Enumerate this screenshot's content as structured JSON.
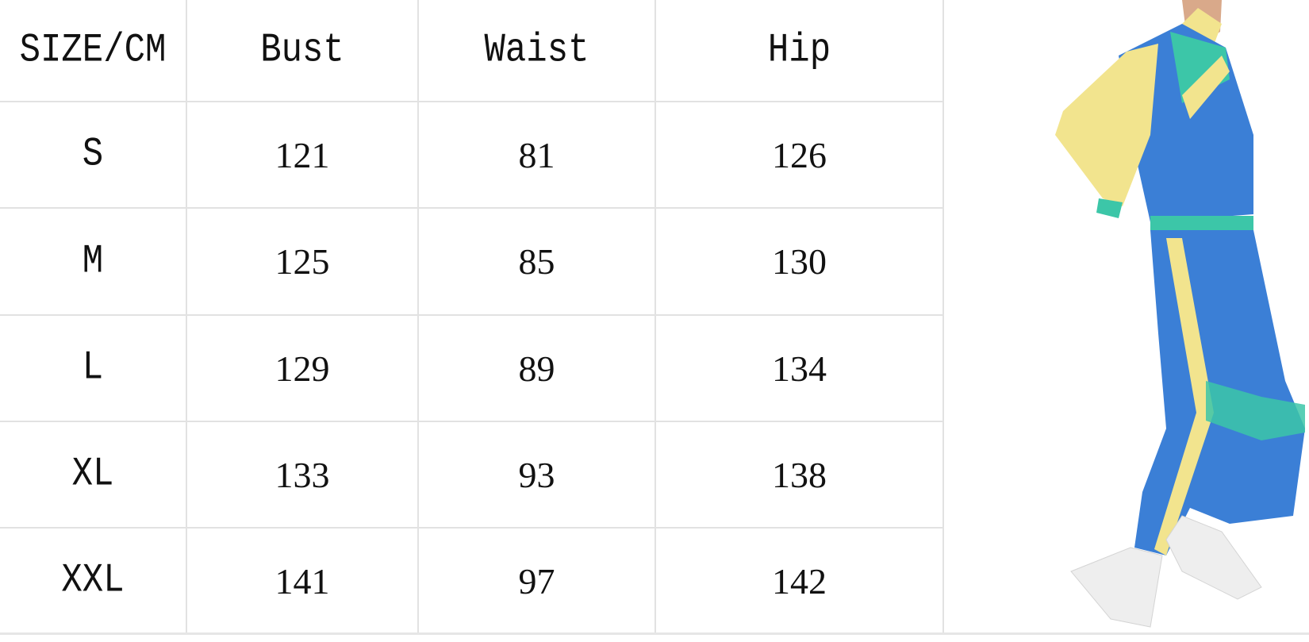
{
  "table": {
    "headers": [
      "SIZE/CM",
      "Bust",
      "Waist",
      "Hip"
    ],
    "rows": [
      [
        "S",
        "121",
        "81",
        "126"
      ],
      [
        "M",
        "125",
        "85",
        "130"
      ],
      [
        "L",
        "129",
        "89",
        "134"
      ],
      [
        "XL",
        "133",
        "93",
        "138"
      ],
      [
        "XXL",
        "141",
        "97",
        "142"
      ]
    ]
  },
  "colors": {
    "grid": "#e2e2e2",
    "suit_blue": "#3b7fd6",
    "suit_yellow": "#f2e48e",
    "suit_teal": "#3cc6a8"
  }
}
